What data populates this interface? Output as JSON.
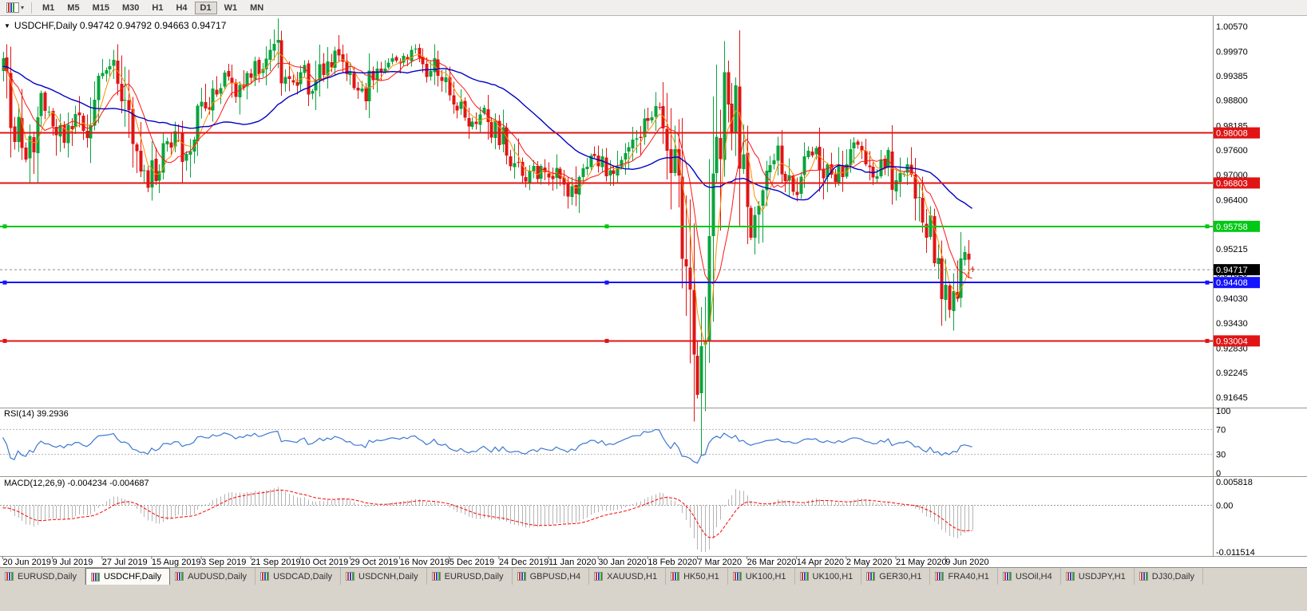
{
  "toolbar": {
    "timeframes": [
      "M1",
      "M5",
      "M15",
      "M30",
      "H1",
      "H4",
      "D1",
      "W1",
      "MN"
    ],
    "active_timeframe": "D1"
  },
  "icons": {
    "caret": "▾",
    "collapse": "▼"
  },
  "chart": {
    "title_line": "USDCHF,Daily  0.94742 0.94792 0.94663 0.94717",
    "symbol": "USDCHF",
    "period": "Daily"
  },
  "price_axis": {
    "ticks": [
      "1.00570",
      "0.99970",
      "0.99385",
      "0.98800",
      "0.98185",
      "0.97600",
      "0.97000",
      "0.96400",
      "0.95810",
      "0.95215",
      "0.94620",
      "0.94030",
      "0.93430",
      "0.92830",
      "0.92245",
      "0.91645"
    ]
  },
  "hlines": [
    {
      "label": "0.98008",
      "value": 0.98008,
      "color": "#e01414",
      "handles": false
    },
    {
      "label": "0.96803",
      "value": 0.96803,
      "color": "#e01414",
      "handles": false
    },
    {
      "label": "0.95758",
      "value": 0.95758,
      "color": "#00c814",
      "handles": true
    },
    {
      "label": "0.94408",
      "value": 0.94408,
      "color": "#1414ff",
      "handles": true
    },
    {
      "label": "0.93004",
      "value": 0.93004,
      "color": "#e01414",
      "handles": true
    }
  ],
  "current_price": {
    "label": "0.94717",
    "value": 0.94717,
    "color": "#000000"
  },
  "dates": [
    "20 Jun 2019",
    "9 Jul 2019",
    "27 Jul 2019",
    "15 Aug 2019",
    "3 Sep 2019",
    "21 Sep 2019",
    "10 Oct 2019",
    "29 Oct 2019",
    "16 Nov 2019",
    "5 Dec 2019",
    "24 Dec 2019",
    "11 Jan 2020",
    "30 Jan 2020",
    "18 Feb 2020",
    "7 Mar 2020",
    "26 Mar 2020",
    "14 Apr 2020",
    "2 May 2020",
    "21 May 2020",
    "9 Jun 2020"
  ],
  "rsi": {
    "label": "RSI(14) 39.2936",
    "period": 14,
    "current": 39.2936,
    "levels": [
      "100",
      "70",
      "30",
      "0"
    ],
    "level_values": [
      100,
      70,
      30,
      0
    ]
  },
  "macd": {
    "label": "MACD(12,26,9) -0.004234 -0.004687",
    "params": [
      12,
      26,
      9
    ],
    "current_macd": -0.004234,
    "current_signal": -0.004687,
    "axis": [
      "0.005818",
      "0.00",
      "-0.011514"
    ],
    "axis_values": [
      0.005818,
      0,
      -0.011514
    ]
  },
  "tabs": {
    "items": [
      "EURUSD,Daily",
      "USDCHF,Daily",
      "AUDUSD,Daily",
      "USDCAD,Daily",
      "USDCNH,Daily",
      "EURUSD,Daily",
      "GBPUSD,H4",
      "XAUUSD,H1",
      "HK50,H1",
      "UK100,H1",
      "UK100,H1",
      "GER30,H1",
      "FRA40,H1",
      "USOil,H4",
      "USDJPY,H1",
      "DJ30,Daily"
    ],
    "active_index": 1
  },
  "colors": {
    "up": "#0aa43c",
    "down": "#e01414",
    "ma_fast": "#ff8c00",
    "ma_mid": "#ff1414",
    "ma_slow": "#0000c8",
    "rsi_line": "#3c78d2",
    "rsi_level": "#b4b4b4",
    "macd_hist": "#b4b4b4",
    "macd_signal": "#ff0000",
    "separator": "#9a978f",
    "axis_text": "#000000"
  },
  "chart_data": {
    "type": "candlestick",
    "symbol": "USDCHF",
    "timeframe": "Daily",
    "ohlc_current": {
      "open": 0.94742,
      "high": 0.94792,
      "low": 0.94663,
      "close": 0.94717
    },
    "last_candle": {
      "o": 0.94742,
      "h": 0.94792,
      "l": 0.94663,
      "c": 0.94717
    },
    "visible_range": {
      "price_axis_top": 1.0057,
      "price_axis_bottom": 0.91645,
      "date_start": "20 Jun 2019",
      "date_end": "9 Jun 2020"
    },
    "horizontal_levels": [
      0.98008,
      0.96803,
      0.95758,
      0.94408,
      0.93004
    ],
    "indicators": [
      {
        "name": "RSI",
        "period": 14,
        "value": 39.2936
      },
      {
        "name": "MACD",
        "params": [
          12,
          26,
          9
        ],
        "values": [
          -0.004234,
          -0.004687
        ]
      },
      {
        "name": "MovingAverages",
        "periods": [
          5,
          10,
          34
        ]
      }
    ],
    "price_anchors": [
      [
        -45,
        1.001
      ],
      [
        -30,
        0.9978
      ],
      [
        -15,
        0.9958
      ],
      [
        0,
        0.9945
      ],
      [
        2,
        0.9885
      ],
      [
        4,
        0.98
      ],
      [
        6,
        0.9735
      ],
      [
        8,
        0.9792
      ],
      [
        11,
        0.987
      ],
      [
        13,
        0.9848
      ],
      [
        16,
        0.979
      ],
      [
        19,
        0.9835
      ],
      [
        21,
        0.9802
      ],
      [
        23,
        0.9855
      ],
      [
        25,
        0.9925
      ],
      [
        27,
        0.9945
      ],
      [
        29,
        0.9952
      ],
      [
        31,
        0.99
      ],
      [
        33,
        0.9832
      ],
      [
        35,
        0.977
      ],
      [
        36,
        0.97
      ],
      [
        38,
        0.9672
      ],
      [
        40,
        0.9722
      ],
      [
        43,
        0.9772
      ],
      [
        46,
        0.979
      ],
      [
        48,
        0.9748
      ],
      [
        50,
        0.982
      ],
      [
        52,
        0.9862
      ],
      [
        55,
        0.9902
      ],
      [
        58,
        0.9938
      ],
      [
        61,
        0.9892
      ],
      [
        64,
        0.993
      ],
      [
        66,
        0.9955
      ],
      [
        68,
        0.9965
      ],
      [
        71,
        0.9998
      ],
      [
        73,
        0.9938
      ],
      [
        76,
        0.9908
      ],
      [
        78,
        0.9942
      ],
      [
        81,
        0.9908
      ],
      [
        84,
        0.9956
      ],
      [
        87,
        0.9985
      ],
      [
        89,
        0.996
      ],
      [
        91,
        0.993
      ],
      [
        94,
        0.99
      ],
      [
        97,
        0.9942
      ],
      [
        100,
        0.9962
      ],
      [
        103,
        0.9978
      ],
      [
        106,
        0.999
      ],
      [
        109,
        0.9994
      ],
      [
        112,
        0.9958
      ],
      [
        115,
        0.992
      ],
      [
        117,
        0.9895
      ],
      [
        120,
        0.9852
      ],
      [
        123,
        0.9828
      ],
      [
        126,
        0.9845
      ],
      [
        128,
        0.9815
      ],
      [
        130,
        0.979
      ],
      [
        133,
        0.9742
      ],
      [
        136,
        0.9682
      ],
      [
        139,
        0.9705
      ],
      [
        141,
        0.972
      ],
      [
        143,
        0.9712
      ],
      [
        146,
        0.968
      ],
      [
        149,
        0.966
      ],
      [
        152,
        0.9712
      ],
      [
        154,
        0.9728
      ],
      [
        156,
        0.9735
      ],
      [
        158,
        0.9702
      ],
      [
        160,
        0.9718
      ],
      [
        162,
        0.9745
      ],
      [
        165,
        0.979
      ],
      [
        168,
        0.9832
      ],
      [
        170,
        0.985
      ],
      [
        172,
        0.983
      ],
      [
        174,
        0.978
      ],
      [
        176,
        0.968
      ],
      [
        178,
        0.956
      ],
      [
        180,
        0.938
      ],
      [
        182,
        0.919
      ],
      [
        184,
        0.934
      ],
      [
        186,
        0.952
      ],
      [
        188,
        0.982
      ],
      [
        189,
        0.9918
      ],
      [
        191,
        0.9878
      ],
      [
        193,
        0.9758
      ],
      [
        195,
        0.96
      ],
      [
        196,
        0.9558
      ],
      [
        198,
        0.964
      ],
      [
        200,
        0.9718
      ],
      [
        202,
        0.9752
      ],
      [
        204,
        0.97
      ],
      [
        207,
        0.9665
      ],
      [
        209,
        0.969
      ],
      [
        211,
        0.9725
      ],
      [
        213,
        0.9758
      ],
      [
        216,
        0.97
      ],
      [
        218,
        0.9672
      ],
      [
        221,
        0.9732
      ],
      [
        224,
        0.9766
      ],
      [
        226,
        0.9735
      ],
      [
        228,
        0.9705
      ],
      [
        230,
        0.9725
      ],
      [
        232,
        0.9748
      ],
      [
        234,
        0.969
      ],
      [
        236,
        0.9716
      ],
      [
        238,
        0.9682
      ],
      [
        240,
        0.9635
      ],
      [
        242,
        0.9592
      ],
      [
        244,
        0.9532
      ],
      [
        246,
        0.9455
      ],
      [
        248,
        0.9385
      ],
      [
        250,
        0.9462
      ],
      [
        252,
        0.9515
      ],
      [
        253,
        0.9498
      ],
      [
        254,
        0.9472
      ]
    ]
  }
}
